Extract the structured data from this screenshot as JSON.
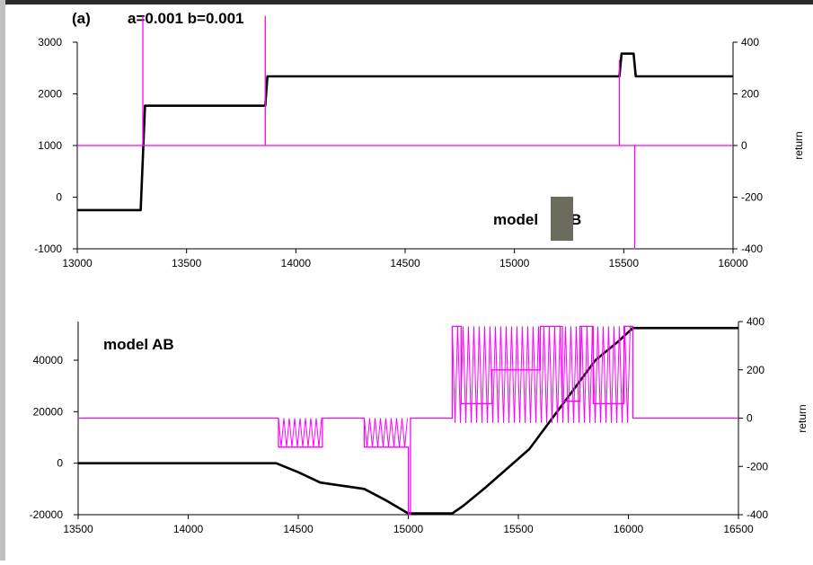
{
  "figure": {
    "panel_label": "(a)",
    "title": "a=0.001 b=0.001"
  },
  "colors": {
    "left_series": "#000000",
    "right_series": "#ff00ff",
    "axis": "#000000",
    "occluder": "#6b6b5e",
    "left_border": "#c0c0c0"
  },
  "chart_data": [
    {
      "type": "line",
      "annotation": "model",
      "xlim": [
        13000,
        16000
      ],
      "xticks": [
        13000,
        13500,
        14000,
        14500,
        15000,
        15500,
        16000
      ],
      "ylim": [
        -1000,
        3000
      ],
      "yticks": [
        -1000,
        0,
        1000,
        2000,
        3000
      ],
      "y2lim": [
        -400,
        400
      ],
      "y2ticks": [
        -400,
        -200,
        0,
        200,
        400
      ],
      "y2label": "return",
      "grid": false,
      "series": [
        {
          "axis": "left",
          "color": "#000000",
          "x": [
            13000,
            13290,
            13310,
            13860,
            13870,
            15480,
            15490,
            15545,
            15555,
            16000
          ],
          "y": [
            -250,
            -250,
            1770,
            1770,
            2340,
            2340,
            2780,
            2780,
            2340,
            2340
          ]
        },
        {
          "axis": "right",
          "color": "#ff00ff",
          "x": [
            13000,
            13300,
            13300,
            13300,
            13860,
            13860,
            13860,
            15480,
            15480,
            15480,
            15550,
            15550,
            15550,
            16000
          ],
          "y": [
            0,
            0,
            500,
            0,
            0,
            500,
            0,
            0,
            330,
            0,
            0,
            -400,
            0,
            0
          ]
        }
      ]
    },
    {
      "type": "line",
      "annotation": "model AB",
      "xlim": [
        13500,
        16500
      ],
      "xticks": [
        13500,
        14000,
        14500,
        15000,
        15500,
        16000,
        16500
      ],
      "ylim": [
        -20000,
        55000
      ],
      "yticks": [
        -20000,
        0,
        20000,
        40000
      ],
      "y2lim": [
        -400,
        400
      ],
      "y2ticks": [
        -400,
        -200,
        0,
        200,
        400
      ],
      "y2label": "return",
      "grid": false,
      "series": [
        {
          "axis": "left",
          "color": "#000000",
          "x": [
            13500,
            14400,
            14500,
            14600,
            14800,
            14900,
            15000,
            15200,
            15250,
            15350,
            15450,
            15550,
            15650,
            15750,
            15850,
            15950,
            16020,
            16500
          ],
          "y": [
            0,
            0,
            -3500,
            -7500,
            -10000,
            -14500,
            -19500,
            -19500,
            -16500,
            -9500,
            -2000,
            5500,
            17000,
            28500,
            40000,
            47000,
            52500,
            52500
          ]
        },
        {
          "axis": "right",
          "color": "#ff00ff",
          "x": [
            13500,
            14410,
            14410,
            14610,
            14610,
            14800,
            14800,
            15000,
            15000,
            15010,
            15010,
            15200,
            15200,
            15240,
            15240,
            15380,
            15380,
            15600,
            15600,
            15700,
            15700,
            15780,
            15780,
            15840,
            15840,
            15980,
            15980,
            16020,
            16020,
            16500
          ],
          "y": [
            0,
            0,
            -120,
            -120,
            0,
            0,
            -120,
            -120,
            -400,
            -400,
            0,
            0,
            380,
            380,
            60,
            60,
            200,
            200,
            380,
            380,
            70,
            70,
            380,
            380,
            60,
            60,
            380,
            380,
            0,
            0
          ],
          "band": [
            {
              "x": [
                14410,
                14610
              ],
              "y": [
                -120,
                0
              ]
            },
            {
              "x": [
                14800,
                15000
              ],
              "y": [
                -120,
                0
              ]
            },
            {
              "x": [
                15200,
                16020
              ],
              "y": [
                -20,
                380
              ]
            }
          ]
        }
      ]
    }
  ]
}
